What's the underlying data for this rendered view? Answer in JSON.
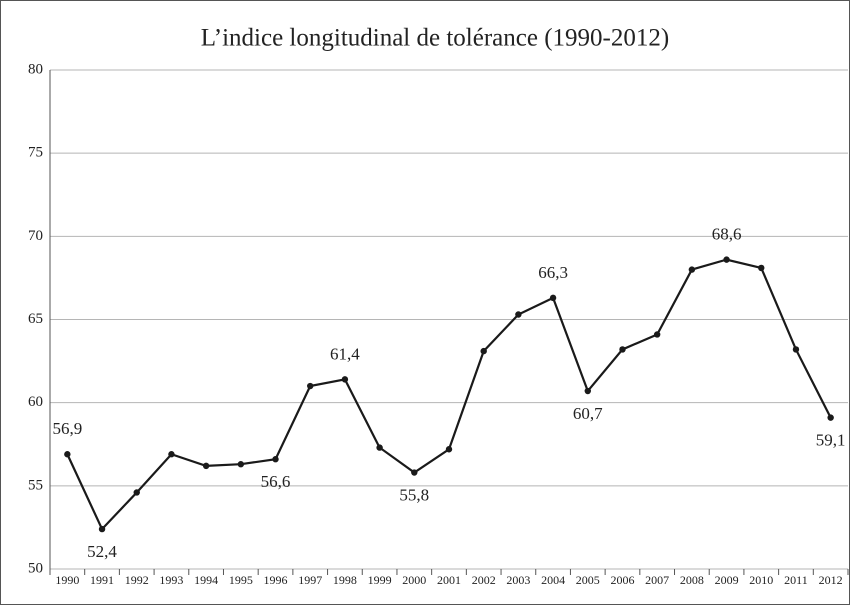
{
  "chart_data": {
    "type": "line",
    "title": "L’indice longitudinal de tolérance (1990-2012)",
    "categories": [
      "1990",
      "1991",
      "1992",
      "1993",
      "1994",
      "1995",
      "1996",
      "1997",
      "1998",
      "1999",
      "2000",
      "2001",
      "2002",
      "2003",
      "2004",
      "2005",
      "2006",
      "2007",
      "2008",
      "2009",
      "2010",
      "2011",
      "2012"
    ],
    "values": [
      56.9,
      52.4,
      54.6,
      56.9,
      56.2,
      56.3,
      56.6,
      61.0,
      61.4,
      57.3,
      55.8,
      57.2,
      63.1,
      65.3,
      66.3,
      60.7,
      63.2,
      64.1,
      68.0,
      68.6,
      68.1,
      63.2,
      59.1
    ],
    "value_labels": [
      "56,9",
      "52,4",
      null,
      null,
      null,
      null,
      "56,6",
      null,
      "61,4",
      null,
      "55,8",
      null,
      null,
      null,
      "66,3",
      "60,7",
      null,
      null,
      null,
      "68,6",
      null,
      null,
      "59,1"
    ],
    "color": "#1a1a1a",
    "ylim": [
      50,
      80
    ],
    "yticks": [
      50,
      55,
      60,
      65,
      70,
      75,
      80
    ],
    "grid": true
  }
}
